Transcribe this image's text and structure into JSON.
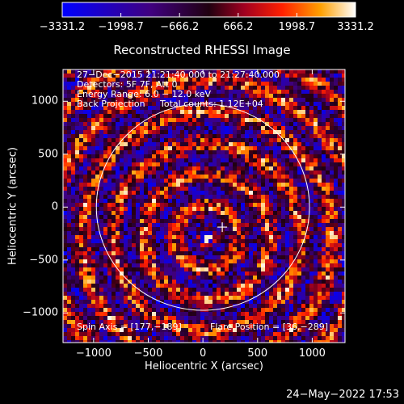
{
  "chart_data": {
    "type": "heatmap",
    "title": "Reconstructed RHESSI Image",
    "xlabel": "Heliocentric X (arcsec)",
    "ylabel": "Heliocentric Y (arcsec)",
    "xlim": [
      -1280,
      1300
    ],
    "ylim": [
      -1280,
      1300
    ],
    "x_ticks": [
      -1000,
      -500,
      0,
      500,
      1000
    ],
    "x_tick_labels": [
      "−1000",
      "−500",
      "0",
      "500",
      "1000"
    ],
    "y_ticks": [
      -1000,
      -500,
      0,
      500,
      1000
    ],
    "y_tick_labels": [
      "−1000",
      "−500",
      "0",
      "500",
      "1000"
    ],
    "colorbar": {
      "min": -3331.2,
      "max": 3331.2,
      "ticks": [
        -3331.2,
        -1998.7,
        -666.2,
        666.2,
        1998.7,
        3331.2
      ],
      "tick_labels": [
        "−3331.2",
        "−1998.7",
        "−666.2",
        "666.2",
        "1998.7",
        "3331.2"
      ]
    },
    "annotations": [
      "27−Dec−2015 21:21:40.000 to 21:27:40.000",
      "Detectors: 5F 7F, Att 0",
      "Energy Range: 6.0 − 12.0 keV",
      "Back Projection",
      "Total counts: 1.12E+04",
      "Spin Axis = [177,−189]",
      "Flare Position = [36,−289]"
    ],
    "solar_limb_radius": 975,
    "map_center": [
      0,
      0
    ],
    "flare_position": [
      36,
      -289
    ],
    "spin_axis": [
      177,
      -189
    ],
    "grid": false
  },
  "footer": {
    "date": "24−May−2022 17:53"
  }
}
